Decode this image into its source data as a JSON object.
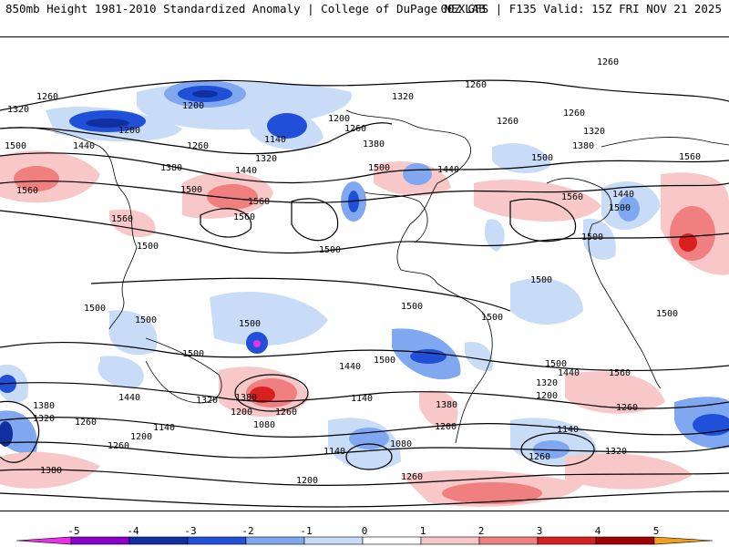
{
  "header": {
    "left": "850mb Height 1981-2010 Standardized Anomaly | College of DuPage NEXLAB",
    "right": "00Z GFS | F135 Valid: 15Z FRI NOV 21 2025"
  },
  "map": {
    "field": "850mb geopotential height contours with standardized anomaly shading",
    "contour_labels": [
      "1260",
      "1320",
      "1500",
      "1200",
      "1440",
      "1380",
      "1560",
      "1140",
      "1080"
    ]
  },
  "legend": {
    "ticks": [
      "-5",
      "-4",
      "-3",
      "-2",
      "-1",
      "0",
      "1",
      "2",
      "3",
      "4",
      "5"
    ],
    "colors": [
      "#e830e8",
      "#8a00c8",
      "#1030a0",
      "#2050d8",
      "#7fa8f0",
      "#c8dcf8",
      "#ffffff",
      "#f8c8c8",
      "#f08080",
      "#d82020",
      "#a00000",
      "#f0a020"
    ]
  }
}
